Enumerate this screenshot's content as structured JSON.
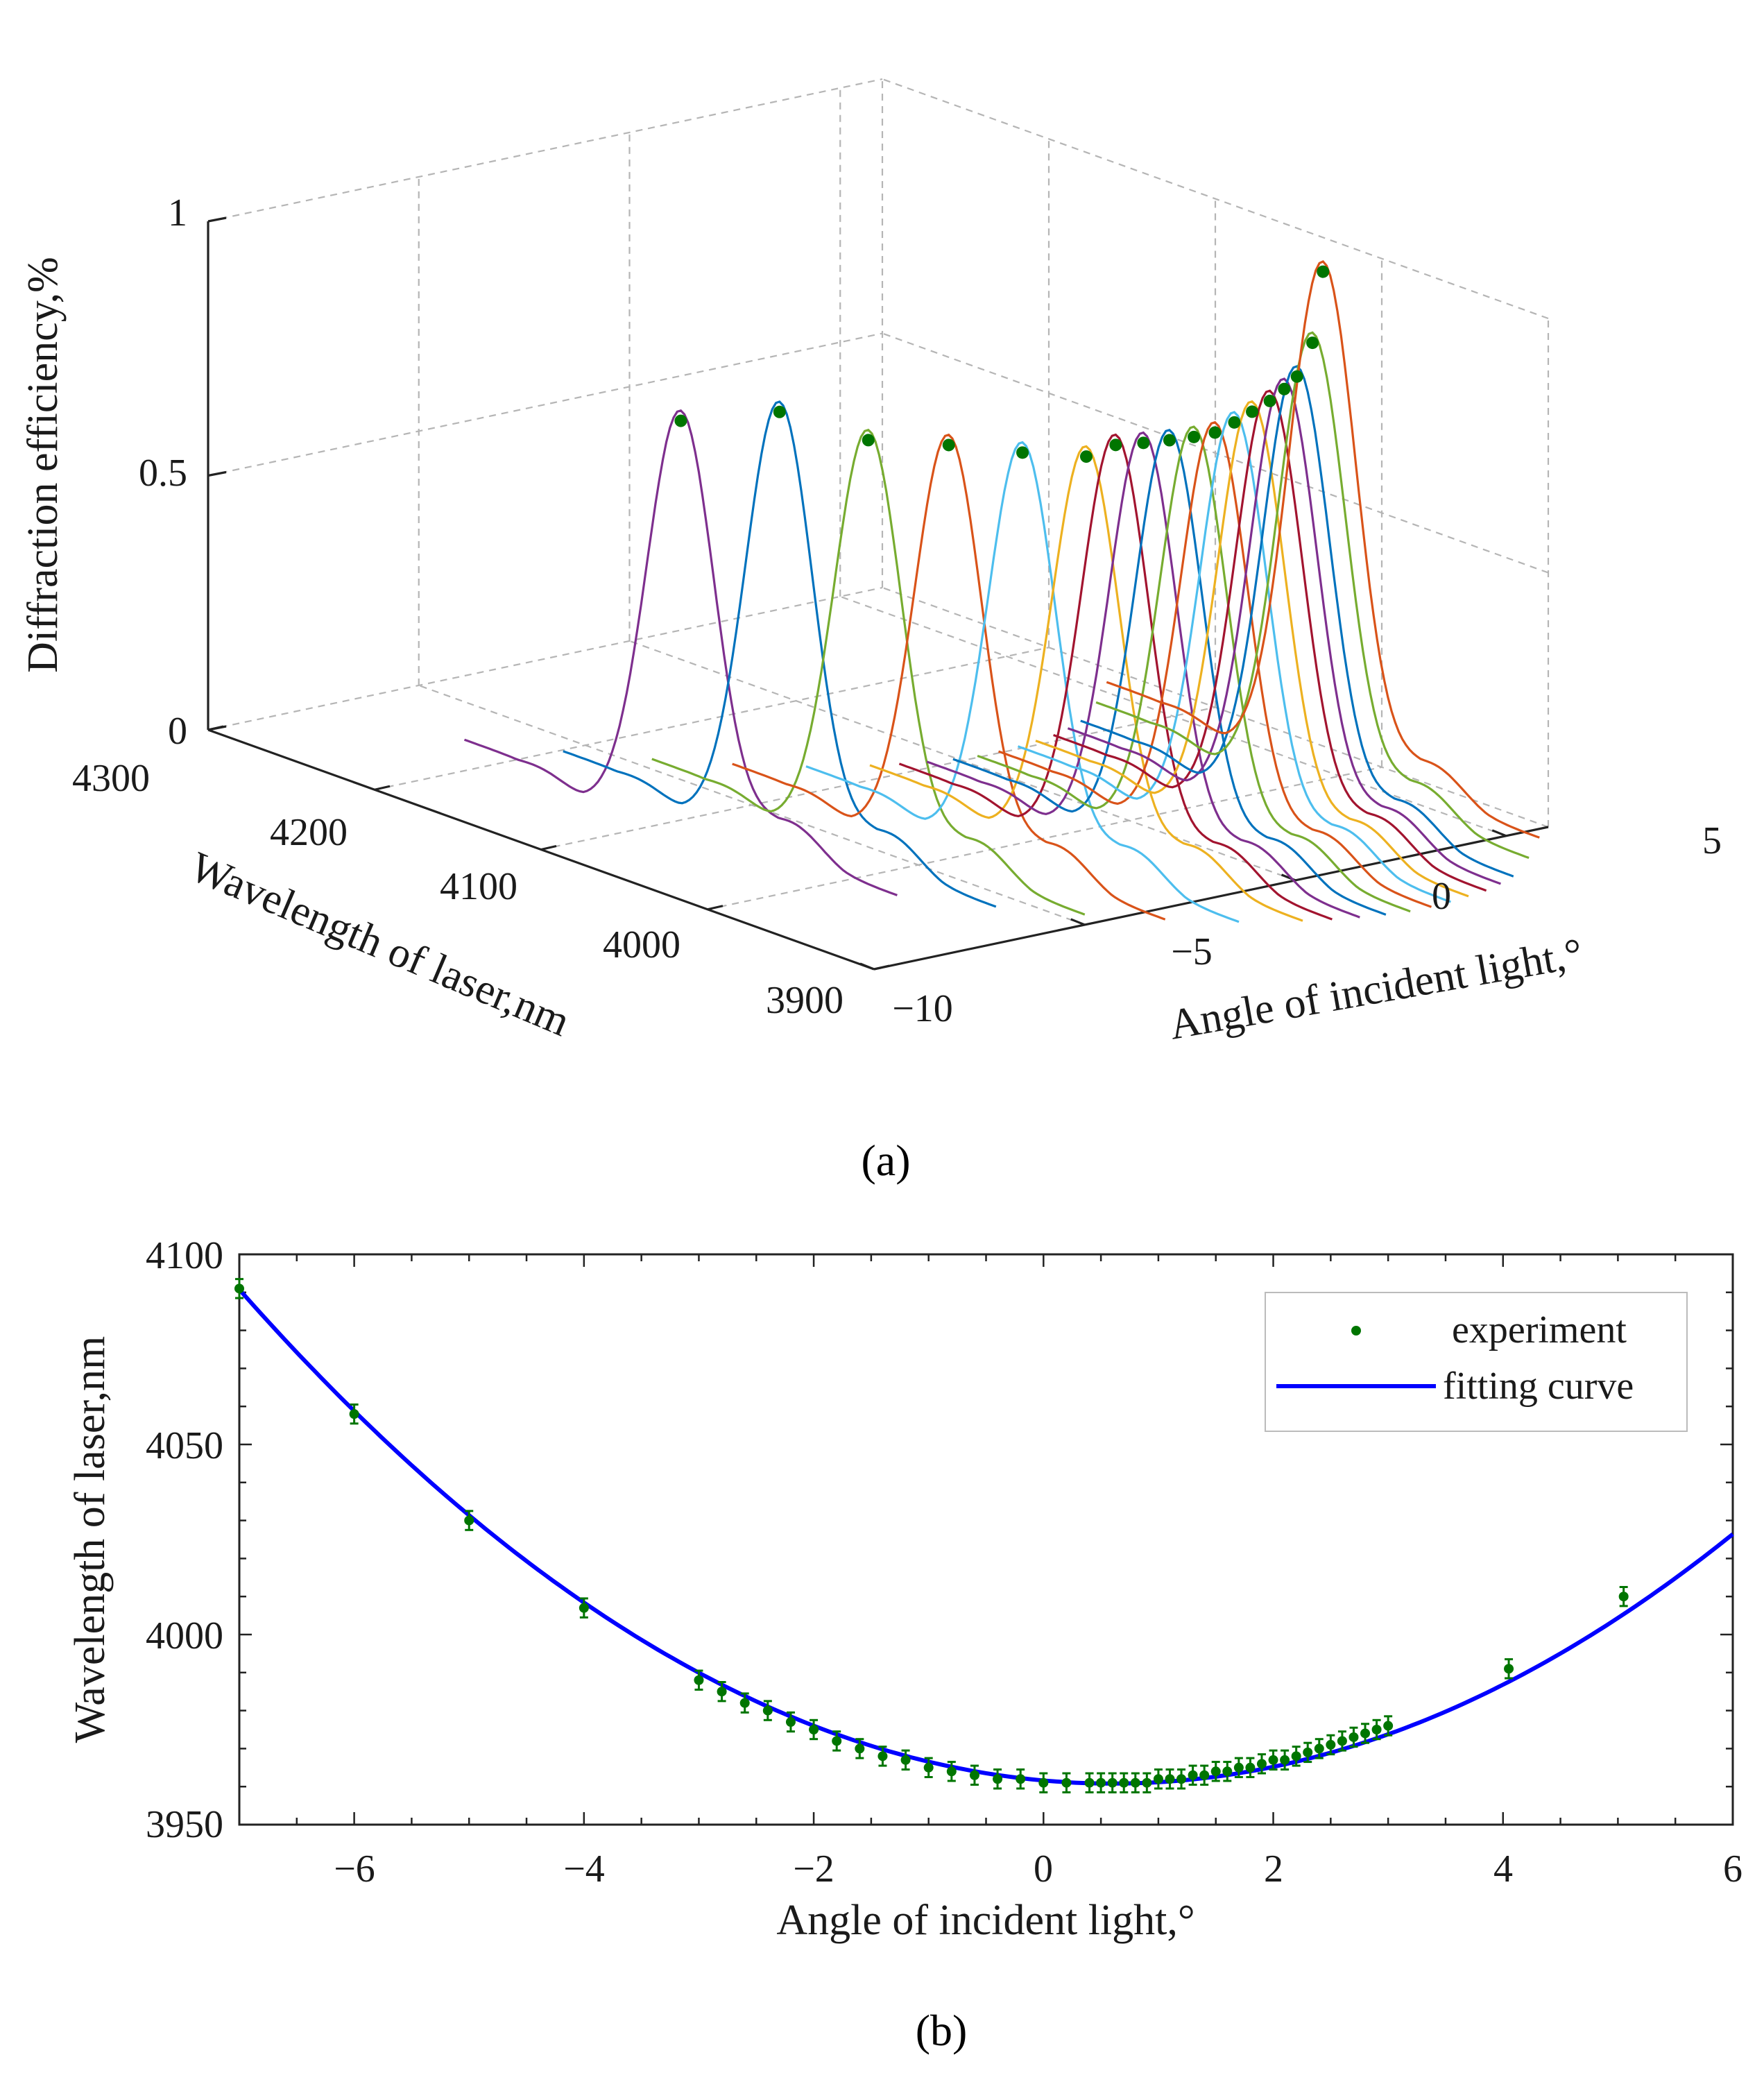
{
  "chart_data": [
    {
      "panel": "a",
      "type": "line",
      "title": "",
      "xlabel": "Angle of incident light,°",
      "ylabel": "Wavelength of laser,nm",
      "zlabel": "Diffraction efficiency,%",
      "xlim": [
        -10,
        6
      ],
      "ylim": [
        3900,
        4300
      ],
      "zlim": [
        0,
        1
      ],
      "xticks": [
        "−10",
        "−5",
        "0",
        "5"
      ],
      "yticks": [
        "3900",
        "4000",
        "4100",
        "4200",
        "4300"
      ],
      "zticks": [
        "0",
        "0.5",
        "1"
      ],
      "curve_colors": [
        "#7E2F8E",
        "#0072BD",
        "#77AC30",
        "#D95319",
        "#4DBEEE",
        "#EDB120",
        "#A2142F"
      ],
      "peak_marker_color": "#007500",
      "series_peaks": [
        {
          "angle": -7.0,
          "wavelength": 4092,
          "efficiency": 0.8
        },
        {
          "angle": -6.0,
          "wavelength": 4058,
          "efficiency": 0.84
        },
        {
          "angle": -5.0,
          "wavelength": 4030,
          "efficiency": 0.8
        },
        {
          "angle": -4.0,
          "wavelength": 4007,
          "efficiency": 0.8
        },
        {
          "angle": -3.0,
          "wavelength": 3988,
          "efficiency": 0.79
        },
        {
          "angle": -2.0,
          "wavelength": 3975,
          "efficiency": 0.78
        },
        {
          "angle": -1.5,
          "wavelength": 3970,
          "efficiency": 0.8
        },
        {
          "angle": -1.0,
          "wavelength": 3966,
          "efficiency": 0.8
        },
        {
          "angle": -0.5,
          "wavelength": 3963,
          "efficiency": 0.8
        },
        {
          "angle": 0.0,
          "wavelength": 3961,
          "efficiency": 0.8
        },
        {
          "angle": 0.5,
          "wavelength": 3961,
          "efficiency": 0.8
        },
        {
          "angle": 1.0,
          "wavelength": 3962,
          "efficiency": 0.81
        },
        {
          "angle": 1.5,
          "wavelength": 3964,
          "efficiency": 0.82
        },
        {
          "angle": 2.0,
          "wavelength": 3966,
          "efficiency": 0.83
        },
        {
          "angle": 2.5,
          "wavelength": 3970,
          "efficiency": 0.84
        },
        {
          "angle": 3.0,
          "wavelength": 3975,
          "efficiency": 0.85
        },
        {
          "angle": 4.0,
          "wavelength": 3991,
          "efficiency": 0.88
        },
        {
          "angle": 5.0,
          "wavelength": 4010,
          "efficiency": 0.98
        }
      ]
    },
    {
      "panel": "b",
      "type": "scatter",
      "title": "",
      "xlabel": "Angle of incident light,°",
      "ylabel": "Wavelength of laser,nm",
      "xlim": [
        -7,
        6
      ],
      "ylim": [
        3950,
        4100
      ],
      "xticks": [
        "−6",
        "−4",
        "−2",
        "0",
        "2",
        "4",
        "6"
      ],
      "yticks": [
        "3950",
        "4000",
        "4050",
        "4100"
      ],
      "grid": false,
      "legend_position": "top-right",
      "legend": [
        "experiment",
        "fitting curve"
      ],
      "series": [
        {
          "name": "experiment",
          "color": "#007500",
          "error": 2.5,
          "x": [
            -7.0,
            -6.0,
            -5.0,
            -4.0,
            -3.0,
            -2.8,
            -2.6,
            -2.4,
            -2.2,
            -2.0,
            -1.8,
            -1.6,
            -1.4,
            -1.2,
            -1.0,
            -0.8,
            -0.6,
            -0.4,
            -0.2,
            0.0,
            0.2,
            0.4,
            0.5,
            0.6,
            0.7,
            0.8,
            0.9,
            1.0,
            1.1,
            1.2,
            1.3,
            1.4,
            1.5,
            1.6,
            1.7,
            1.8,
            1.9,
            2.0,
            2.1,
            2.2,
            2.3,
            2.4,
            2.5,
            2.6,
            2.7,
            2.8,
            2.9,
            3.0,
            4.05,
            5.05
          ],
          "y": [
            4091,
            4058,
            4030,
            4007,
            3988,
            3985,
            3982,
            3980,
            3977,
            3975,
            3972,
            3970,
            3968,
            3967,
            3965,
            3964,
            3963,
            3962,
            3962,
            3961,
            3961,
            3961,
            3961,
            3961,
            3961,
            3961,
            3961,
            3962,
            3962,
            3962,
            3963,
            3963,
            3964,
            3964,
            3965,
            3965,
            3966,
            3967,
            3967,
            3968,
            3969,
            3970,
            3971,
            3972,
            3973,
            3974,
            3975,
            3976,
            3991,
            4010
          ]
        },
        {
          "name": "fitting curve",
          "color": "#0000FF",
          "fit": {
            "vertex_x": 0.6,
            "vertex_y": 3960.8,
            "a": 2.25
          },
          "x_range": [
            -7,
            6
          ]
        }
      ]
    }
  ],
  "panel_labels": {
    "a": "(a)",
    "b": "(b)"
  }
}
